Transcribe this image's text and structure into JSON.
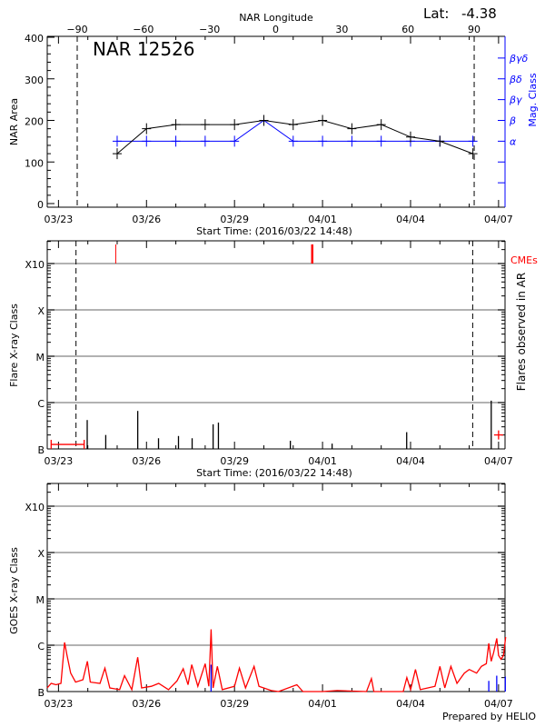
{
  "header": {
    "lat_label": "Lat:",
    "lat_value": "-4.38",
    "footer": "Prepared by HELIO"
  },
  "colors": {
    "area": "#000000",
    "mag_class": "#0000ff",
    "cme": "#ff0000",
    "goes": "#ff0000",
    "grid": "#999999"
  },
  "chart_data": [
    {
      "type": "line",
      "title": "NAR 12526",
      "xlabel": "Start Time: (2016/03/22 14:48)",
      "ylabel": "NAR Area",
      "y2label": "Mag. Class",
      "toplabel": "NAR Longitude",
      "xlim": [
        "2016-03-22T14:48",
        "2016-04-07T06:00"
      ],
      "ylim": [
        0,
        400
      ],
      "yticks": [
        0,
        100,
        200,
        300,
        400
      ],
      "xtick_labels": [
        "03/23",
        "03/26",
        "03/29",
        "04/01",
        "04/04",
        "04/07"
      ],
      "top_ticks": [
        -90,
        -60,
        -30,
        0,
        30,
        60,
        90
      ],
      "limb_longitudes": [
        -90,
        90
      ],
      "mag_class_ticks": [
        {
          "label": "",
          "level": 50
        },
        {
          "label": "",
          "level": 100
        },
        {
          "label": "α",
          "level": 150
        },
        {
          "label": "β",
          "level": 200
        },
        {
          "label": "βγ",
          "level": 250
        },
        {
          "label": "βδ",
          "level": 300
        },
        {
          "label": "βγδ",
          "level": 350
        }
      ],
      "series": [
        {
          "key": "area",
          "x": [
            "2016-03-25T00:00",
            "2016-03-26T00:00",
            "2016-03-27T00:00",
            "2016-03-28T00:00",
            "2016-03-29T00:00",
            "2016-03-30T00:00",
            "2016-03-31T00:00",
            "2016-04-01T00:00",
            "2016-04-02T00:00",
            "2016-04-03T00:00",
            "2016-04-04T00:00",
            "2016-04-05T00:00",
            "2016-04-06T03:00"
          ],
          "values": [
            120,
            180,
            190,
            190,
            190,
            200,
            190,
            200,
            180,
            190,
            160,
            150,
            120
          ]
        },
        {
          "key": "mag_class",
          "x": [
            "2016-03-25T00:00",
            "2016-03-26T00:00",
            "2016-03-27T00:00",
            "2016-03-28T00:00",
            "2016-03-29T00:00",
            "2016-03-30T00:00",
            "2016-03-31T00:00",
            "2016-04-01T00:00",
            "2016-04-02T00:00",
            "2016-04-03T00:00",
            "2016-04-04T00:00",
            "2016-04-05T00:00",
            "2016-04-06T03:00"
          ],
          "values": [
            "α",
            "α",
            "α",
            "α",
            "α",
            "β",
            "α",
            "α",
            "α",
            "α",
            "α",
            "α",
            "α"
          ]
        }
      ]
    },
    {
      "type": "bar",
      "xlabel": "Start Time: (2016/03/22 14:48)",
      "ylabel": "Flare X-ray Class",
      "y2label": "Flares observed in AR",
      "cme_label": "CMEs",
      "scale": "log",
      "ylim": [
        1e-07,
        0.0031
      ],
      "yticks": [
        {
          "label": "B",
          "flux": 1e-07
        },
        {
          "label": "C",
          "flux": 1e-06
        },
        {
          "label": "M",
          "flux": 1e-05
        },
        {
          "label": "X",
          "flux": 0.0001
        },
        {
          "label": "X10",
          "flux": 0.001
        }
      ],
      "xtick_labels": [
        "03/23",
        "03/26",
        "03/29",
        "04/01",
        "04/04",
        "04/07"
      ],
      "limb_times": [
        "2016-03-23T14:20",
        "2016-04-06T02:50"
      ],
      "flares": [
        {
          "time": "2016-03-23T23:30",
          "class": "B4.2",
          "flux": 4.2e-07
        },
        {
          "time": "2016-03-24T14:40",
          "class": "B2.0",
          "flux": 2e-07
        },
        {
          "time": "2016-03-25T16:50",
          "class": "B6.6",
          "flux": 6.6e-07
        },
        {
          "time": "2016-03-26T09:50",
          "class": "B1.7",
          "flux": 1.7e-07
        },
        {
          "time": "2016-03-27T02:10",
          "class": "B1.9",
          "flux": 1.9e-07
        },
        {
          "time": "2016-03-27T13:20",
          "class": "B1.7",
          "flux": 1.7e-07
        },
        {
          "time": "2016-03-28T06:30",
          "class": "B3.4",
          "flux": 3.4e-07
        },
        {
          "time": "2016-03-28T10:50",
          "class": "B3.7",
          "flux": 3.7e-07
        },
        {
          "time": "2016-03-30T21:40",
          "class": "B1.5",
          "flux": 1.5e-07
        },
        {
          "time": "2016-04-01T07:50",
          "class": "B1.3",
          "flux": 1.3e-07
        },
        {
          "time": "2016-04-03T20:50",
          "class": "B2.3",
          "flux": 2.3e-07
        },
        {
          "time": "2016-04-06T18:00",
          "class": "C1.1",
          "flux": 1.1e-06
        }
      ],
      "cmes": [
        {
          "time": "2016-03-24T22:50",
          "width": "thin"
        },
        {
          "time": "2016-03-31T15:35",
          "width": "thick"
        }
      ],
      "markers": [
        {
          "type": "range",
          "start": "2016-03-22T18:00",
          "end": "2016-03-23T21:00",
          "flux": 1.25e-07
        },
        {
          "type": "point",
          "time": "2016-04-07T00:00",
          "flux": 2e-07
        }
      ]
    },
    {
      "type": "line",
      "ylabel": "GOES X-ray Class",
      "scale": "log",
      "ylim": [
        1e-07,
        0.0031
      ],
      "yticks": [
        {
          "label": "B",
          "flux": 1e-07
        },
        {
          "label": "C",
          "flux": 1e-06
        },
        {
          "label": "M",
          "flux": 1e-05
        },
        {
          "label": "X",
          "flux": 0.0001
        },
        {
          "label": "X10",
          "flux": 0.001
        }
      ],
      "xtick_labels": [
        "03/23",
        "03/26",
        "03/29",
        "04/01",
        "04/04",
        "04/07"
      ],
      "goes_flux": [
        [
          "2016-03-22T14:48",
          1.2e-07
        ],
        [
          "2016-03-22T18:00",
          1.5e-07
        ],
        [
          "2016-03-22T22:00",
          1.4e-07
        ],
        [
          "2016-03-23T02:00",
          1.5e-07
        ],
        [
          "2016-03-23T05:00",
          1.15e-06
        ],
        [
          "2016-03-23T07:00",
          6e-07
        ],
        [
          "2016-03-23T10:00",
          2.5e-07
        ],
        [
          "2016-03-23T14:00",
          1.6e-07
        ],
        [
          "2016-03-23T20:00",
          1.8e-07
        ],
        [
          "2016-03-23T23:40",
          4.5e-07
        ],
        [
          "2016-03-24T02:00",
          1.6e-07
        ],
        [
          "2016-03-24T10:00",
          1.5e-07
        ],
        [
          "2016-03-24T14:00",
          3.2e-07
        ],
        [
          "2016-03-24T18:00",
          1.2e-07
        ],
        [
          "2016-03-25T02:00",
          1.1e-07
        ],
        [
          "2016-03-25T06:00",
          2.2e-07
        ],
        [
          "2016-03-25T12:00",
          1.1e-07
        ],
        [
          "2016-03-25T16:50",
          5.5e-07
        ],
        [
          "2016-03-25T20:00",
          1.2e-07
        ],
        [
          "2016-03-26T04:00",
          1.3e-07
        ],
        [
          "2016-03-26T10:00",
          1.5e-07
        ],
        [
          "2016-03-26T18:00",
          1.1e-07
        ],
        [
          "2016-03-27T01:00",
          1.7e-07
        ],
        [
          "2016-03-27T06:00",
          3.1e-07
        ],
        [
          "2016-03-27T10:00",
          1.4e-07
        ],
        [
          "2016-03-27T13:00",
          3.8e-07
        ],
        [
          "2016-03-27T18:00",
          1.3e-07
        ],
        [
          "2016-03-28T00:00",
          4e-07
        ],
        [
          "2016-03-28T03:00",
          1.3e-07
        ],
        [
          "2016-03-28T04:50",
          2.2e-06
        ],
        [
          "2016-03-28T06:30",
          1.2e-07
        ],
        [
          "2016-03-28T10:00",
          3.5e-07
        ],
        [
          "2016-03-28T14:00",
          1.1e-07
        ],
        [
          "2016-03-29T00:00",
          1.3e-07
        ],
        [
          "2016-03-29T04:00",
          3.2e-07
        ],
        [
          "2016-03-29T09:00",
          1.2e-07
        ],
        [
          "2016-03-29T16:00",
          3.5e-07
        ],
        [
          "2016-03-29T20:00",
          1.3e-07
        ],
        [
          "2016-03-30T06:00",
          1.05e-07
        ],
        [
          "2016-03-30T12:00",
          9e-08
        ],
        [
          "2016-03-31T03:00",
          1.4e-07
        ],
        [
          "2016-03-31T08:00",
          9e-08
        ],
        [
          "2016-04-01T00:00",
          8e-08
        ],
        [
          "2016-04-01T12:00",
          1.05e-07
        ],
        [
          "2016-04-02T12:00",
          8e-08
        ],
        [
          "2016-04-02T16:00",
          1.9e-07
        ],
        [
          "2016-04-02T18:00",
          8e-08
        ],
        [
          "2016-04-03T18:00",
          9e-08
        ],
        [
          "2016-04-03T21:00",
          2e-07
        ],
        [
          "2016-04-04T00:00",
          1.1e-07
        ],
        [
          "2016-04-04T04:00",
          3e-07
        ],
        [
          "2016-04-04T08:00",
          1.1e-07
        ],
        [
          "2016-04-04T20:00",
          1.3e-07
        ],
        [
          "2016-04-05T00:00",
          3.5e-07
        ],
        [
          "2016-04-05T04:00",
          1.2e-07
        ],
        [
          "2016-04-05T09:00",
          3.5e-07
        ],
        [
          "2016-04-05T14:00",
          1.5e-07
        ],
        [
          "2016-04-05T20:00",
          2.5e-07
        ],
        [
          "2016-04-06T00:00",
          3e-07
        ],
        [
          "2016-04-06T06:00",
          2.5e-07
        ],
        [
          "2016-04-06T10:00",
          3.5e-07
        ],
        [
          "2016-04-06T14:00",
          4e-07
        ],
        [
          "2016-04-06T16:00",
          1.1e-06
        ],
        [
          "2016-04-06T18:00",
          4.5e-07
        ],
        [
          "2016-04-06T20:00",
          7e-07
        ],
        [
          "2016-04-06T22:30",
          1.4e-06
        ],
        [
          "2016-04-07T00:00",
          6e-07
        ],
        [
          "2016-04-07T02:00",
          5e-07
        ],
        [
          "2016-04-07T04:00",
          6e-07
        ],
        [
          "2016-04-07T05:50",
          1.5e-06
        ]
      ],
      "goes_blue_ticks": [
        [
          "2016-03-28T04:50",
          3.8e-07
        ],
        [
          "2016-04-06T16:00",
          1.7e-07
        ],
        [
          "2016-04-06T22:30",
          2.2e-07
        ],
        [
          "2016-04-07T05:30",
          2.1e-07
        ]
      ]
    }
  ]
}
